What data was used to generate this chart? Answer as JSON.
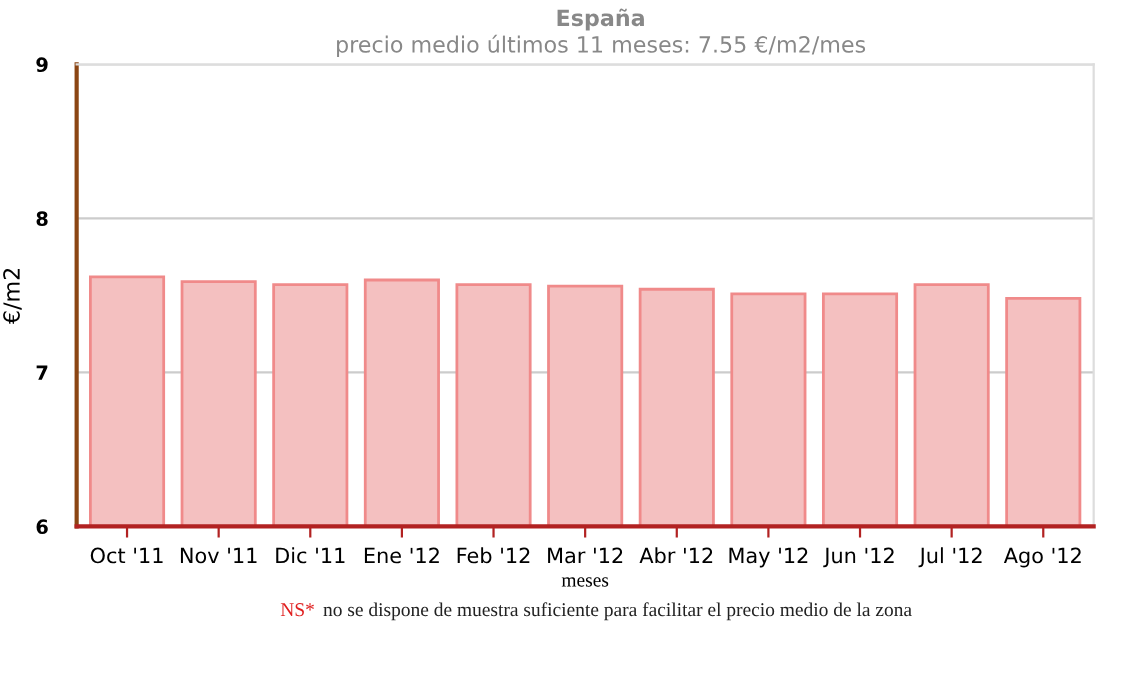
{
  "chart_data": {
    "type": "bar",
    "title": "España",
    "subtitle": "precio medio últimos 11 meses: 7.55 €/m2/mes",
    "xlabel": "meses",
    "ylabel": "€/m2",
    "categories": [
      "Oct '11",
      "Nov '11",
      "Dic '11",
      "Ene '12",
      "Feb '12",
      "Mar '12",
      "Abr '12",
      "May '12",
      "Jun '12",
      "Jul '12",
      "Ago '12"
    ],
    "values": [
      7.62,
      7.59,
      7.57,
      7.6,
      7.57,
      7.56,
      7.54,
      7.51,
      7.51,
      7.57,
      7.48
    ],
    "color": "#f4c0c0",
    "ylim": [
      6,
      9
    ],
    "yticks": [
      6,
      7,
      8,
      9
    ],
    "grid": "y",
    "legend": false,
    "annotations": [
      "NS*",
      "no se dispone de muestra suficiente para facilitar el precio medio de la zona"
    ]
  }
}
